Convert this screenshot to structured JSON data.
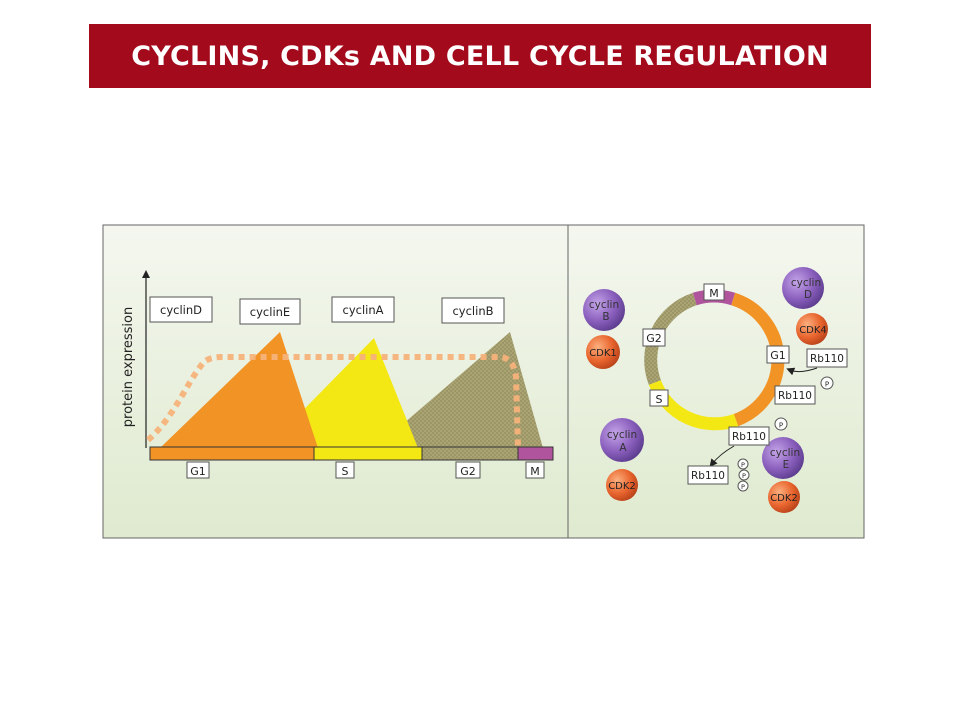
{
  "slide": {
    "title": "CYCLINS, CDKs AND CELL CYCLE REGULATION"
  },
  "left_panel": {
    "y_axis_label": "protein expression",
    "cyclin_labels": [
      "cyclinD",
      "cyclinE",
      "cyclinA",
      "cyclinB"
    ],
    "phase_labels": [
      "G1",
      "S",
      "G2",
      "M"
    ]
  },
  "right_panel": {
    "cycle_phase_labels": [
      "M",
      "G2",
      "G1",
      "S"
    ],
    "complex_cyclinB": {
      "cyclin_line1": "cyclin",
      "cyclin_line2": "B",
      "cdk": "CDK1"
    },
    "complex_cyclinD": {
      "cyclin_line1": "cyclin",
      "cyclin_line2": "D",
      "cdk": "CDK4"
    },
    "complex_cyclinA": {
      "cyclin_line1": "cyclin",
      "cyclin_line2": "A",
      "cdk": "CDK2"
    },
    "complex_cyclinE": {
      "cyclin_line1": "cyclin",
      "cyclin_line2": "E",
      "cdk": "CDK2"
    },
    "rb_labels": [
      "Rb110",
      "Rb110",
      "Rb110",
      "Rb110"
    ],
    "phospho_label": "P"
  },
  "colors": {
    "title_bg": "#a30b1c",
    "title_text": "#ffffff",
    "panel_bg": "#e6efdc",
    "g1_orange": "#f29325",
    "s_yellow": "#f4e814",
    "g2_olive": "#a9a275",
    "m_magenta": "#b0559d",
    "cyclin_purple": "#8a5fbd",
    "cdk_orange": "#e9652e"
  }
}
